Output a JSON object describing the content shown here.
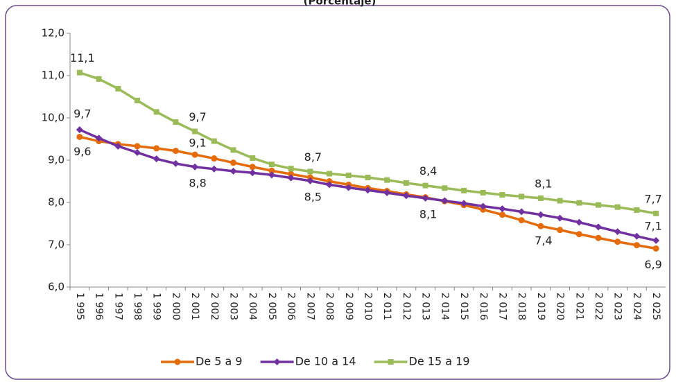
{
  "chart_data": {
    "type": "line",
    "title": "(Porcentaje)",
    "categories": [
      "1 995",
      "1 996",
      "1 997",
      "1 998",
      "1 999",
      "2 000",
      "2 001",
      "2 002",
      "2 003",
      "2 004",
      "2 005",
      "2 006",
      "2 007",
      "2 008",
      "2 009",
      "2 010",
      "2 011",
      "2 012",
      "2 013",
      "2 014",
      "2 015",
      "2 016",
      "2 017",
      "2 018",
      "2 019",
      "2 020",
      "2 021",
      "2 022",
      "2 023",
      "2 024",
      "2 025"
    ],
    "series": [
      {
        "name": "De 5 a 9",
        "color": "#e46c0a",
        "marker": "circle",
        "values": [
          9.55,
          9.45,
          9.38,
          9.33,
          9.28,
          9.22,
          9.13,
          9.04,
          8.94,
          8.84,
          8.75,
          8.67,
          8.59,
          8.5,
          8.42,
          8.34,
          8.27,
          8.19,
          8.12,
          8.03,
          7.94,
          7.83,
          7.71,
          7.58,
          7.44,
          7.35,
          7.25,
          7.16,
          7.07,
          6.99,
          6.91
        ],
        "value_labels": [
          "9,6",
          null,
          null,
          null,
          null,
          null,
          "9,1",
          null,
          null,
          null,
          null,
          null,
          null,
          null,
          null,
          null,
          null,
          null,
          null,
          null,
          null,
          null,
          null,
          null,
          "7,4",
          null,
          null,
          null,
          null,
          null,
          "6,9"
        ]
      },
      {
        "name": "De 10 a 14",
        "color": "#7030a0",
        "marker": "diamond",
        "values": [
          9.72,
          9.52,
          9.33,
          9.18,
          9.03,
          8.92,
          8.84,
          8.79,
          8.74,
          8.7,
          8.65,
          8.58,
          8.51,
          8.42,
          8.35,
          8.29,
          8.23,
          8.16,
          8.1,
          8.04,
          7.98,
          7.91,
          7.85,
          7.78,
          7.71,
          7.63,
          7.53,
          7.42,
          7.31,
          7.2,
          7.1
        ],
        "value_labels": [
          "9,7",
          null,
          null,
          null,
          null,
          null,
          "8,8",
          null,
          null,
          null,
          null,
          null,
          "8,5",
          null,
          null,
          null,
          null,
          null,
          "8,1",
          null,
          null,
          null,
          null,
          null,
          null,
          null,
          null,
          null,
          null,
          null,
          "7,1"
        ]
      },
      {
        "name": "De 15 a 19",
        "color": "#9bbb59",
        "marker": "square",
        "values": [
          11.07,
          10.92,
          10.69,
          10.41,
          10.14,
          9.9,
          9.68,
          9.45,
          9.24,
          9.05,
          8.9,
          8.8,
          8.73,
          8.68,
          8.64,
          8.59,
          8.53,
          8.46,
          8.4,
          8.34,
          8.28,
          8.23,
          8.18,
          8.14,
          8.1,
          8.04,
          7.99,
          7.94,
          7.89,
          7.82,
          7.74
        ],
        "value_labels": [
          "11,1",
          null,
          null,
          null,
          null,
          null,
          "9,7",
          null,
          null,
          null,
          null,
          null,
          "8,7",
          null,
          null,
          null,
          null,
          null,
          "8,4",
          null,
          null,
          null,
          null,
          null,
          "8,1",
          null,
          null,
          null,
          null,
          null,
          "7,7"
        ]
      }
    ],
    "ylim": [
      6,
      12
    ],
    "yticks": [
      {
        "value": 6,
        "label": "6,0"
      },
      {
        "value": 7,
        "label": "7,0"
      },
      {
        "value": 8,
        "label": "8,0"
      },
      {
        "value": 9,
        "label": "9,0"
      },
      {
        "value": 10,
        "label": "10,0"
      },
      {
        "value": 11,
        "label": "11,0"
      },
      {
        "value": 12,
        "label": "12,0"
      }
    ],
    "legend": "bottom"
  }
}
